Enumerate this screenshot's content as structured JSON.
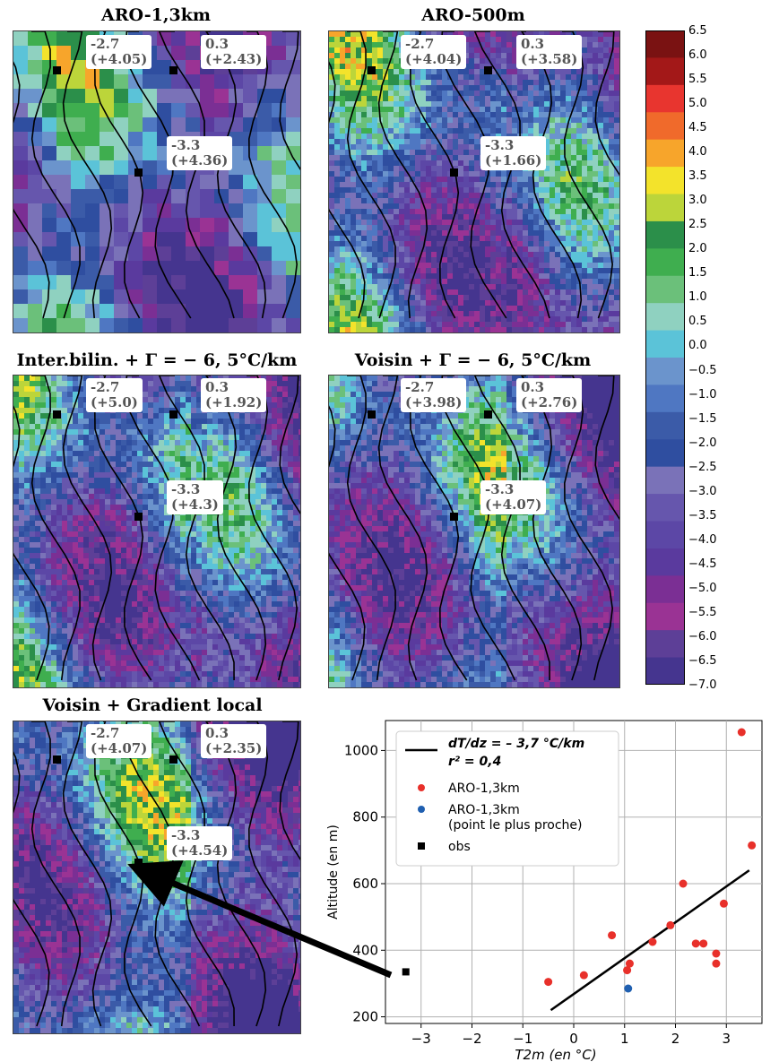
{
  "panels": [
    {
      "title": "ARO-1,3km",
      "values": [
        [
          "-2.7",
          "(+4.05)"
        ],
        [
          "0.3",
          "(+2.43)"
        ],
        [
          "-3.3",
          "(+4.36)"
        ]
      ]
    },
    {
      "title": "ARO-500m",
      "values": [
        [
          "-2.7",
          "(+4.04)"
        ],
        [
          "0.3",
          "(+3.58)"
        ],
        [
          "-3.3",
          "(+1.66)"
        ]
      ]
    },
    {
      "title": "Inter.bilin. + Γ = − 6, 5°C/km",
      "values": [
        [
          "-2.7",
          "(+5.0)"
        ],
        [
          "0.3",
          "(+1.92)"
        ],
        [
          "-3.3",
          "(+4.3)"
        ]
      ]
    },
    {
      "title": "Voisin + Γ = − 6, 5°C/km",
      "values": [
        [
          "-2.7",
          "(+3.98)"
        ],
        [
          "0.3",
          "(+2.76)"
        ],
        [
          "-3.3",
          "(+4.07)"
        ]
      ]
    },
    {
      "title": "Voisin + Gradient local",
      "values": [
        [
          "-2.7",
          "(+4.07)"
        ],
        [
          "0.3",
          "(+2.35)"
        ],
        [
          "-3.3",
          "(+4.54)"
        ]
      ]
    }
  ],
  "colorbar": {
    "ticks": [
      "6.5",
      "6.0",
      "5.5",
      "5.0",
      "4.5",
      "4.0",
      "3.5",
      "3.0",
      "2.5",
      "2.0",
      "1.5",
      "1.0",
      "0.5",
      "0.0",
      "−0.5",
      "−1.0",
      "−1.5",
      "−2.0",
      "−2.5",
      "−3.0",
      "−3.5",
      "−4.0",
      "−4.5",
      "−5.0",
      "−5.5",
      "−6.0",
      "−6.5",
      "−7.0"
    ],
    "colors": [
      "#7a1212",
      "#a31818",
      "#e8352f",
      "#f06a2b",
      "#f7a52b",
      "#f3e32b",
      "#bcd53a",
      "#2b8f4a",
      "#3fae4f",
      "#6bc07a",
      "#8fd1c0",
      "#5bc3d8",
      "#6b94cc",
      "#4f77c2",
      "#3b5ba8",
      "#2f4ea0",
      "#7a72b8",
      "#6656ad",
      "#5c47a6",
      "#5a3a9e",
      "#7b2f94",
      "#9a3394",
      "#5d3f97",
      "#45358f"
    ]
  },
  "chart_data": {
    "type": "scatter",
    "xlabel": "T2m  (en °C)",
    "ylabel": "Altitude (en m)",
    "xlim": [
      -3.7,
      3.7
    ],
    "ylim": [
      180,
      1090
    ],
    "xticks": [
      -3,
      -2,
      -1,
      0,
      1,
      2,
      3
    ],
    "yticks": [
      200,
      400,
      600,
      800,
      1000
    ],
    "grid": true,
    "legend_position": "top-left",
    "series": [
      {
        "name": "ARO-1,3km",
        "color": "#e8302a",
        "x": [
          3.3,
          3.5,
          -0.5,
          0.2,
          0.75,
          1.05,
          1.1,
          1.55,
          1.9,
          2.15,
          2.4,
          2.55,
          2.8,
          2.8,
          2.95
        ],
        "y": [
          1055,
          715,
          305,
          325,
          445,
          340,
          360,
          425,
          475,
          600,
          420,
          420,
          390,
          360,
          540
        ]
      },
      {
        "name": "ARO-1,3km\n(point le plus proche)",
        "color": "#1f5fb0",
        "x": [
          1.07
        ],
        "y": [
          285
        ]
      },
      {
        "name": "obs",
        "color": "#000000",
        "marker": "square",
        "x": [
          -3.3
        ],
        "y": [
          335
        ]
      }
    ],
    "fit_line": {
      "label": "dT/dz = – 3,7 °C/km",
      "r2_label": "r² = 0,4",
      "x": [
        -0.45,
        3.45
      ],
      "y": [
        220,
        640
      ]
    }
  }
}
